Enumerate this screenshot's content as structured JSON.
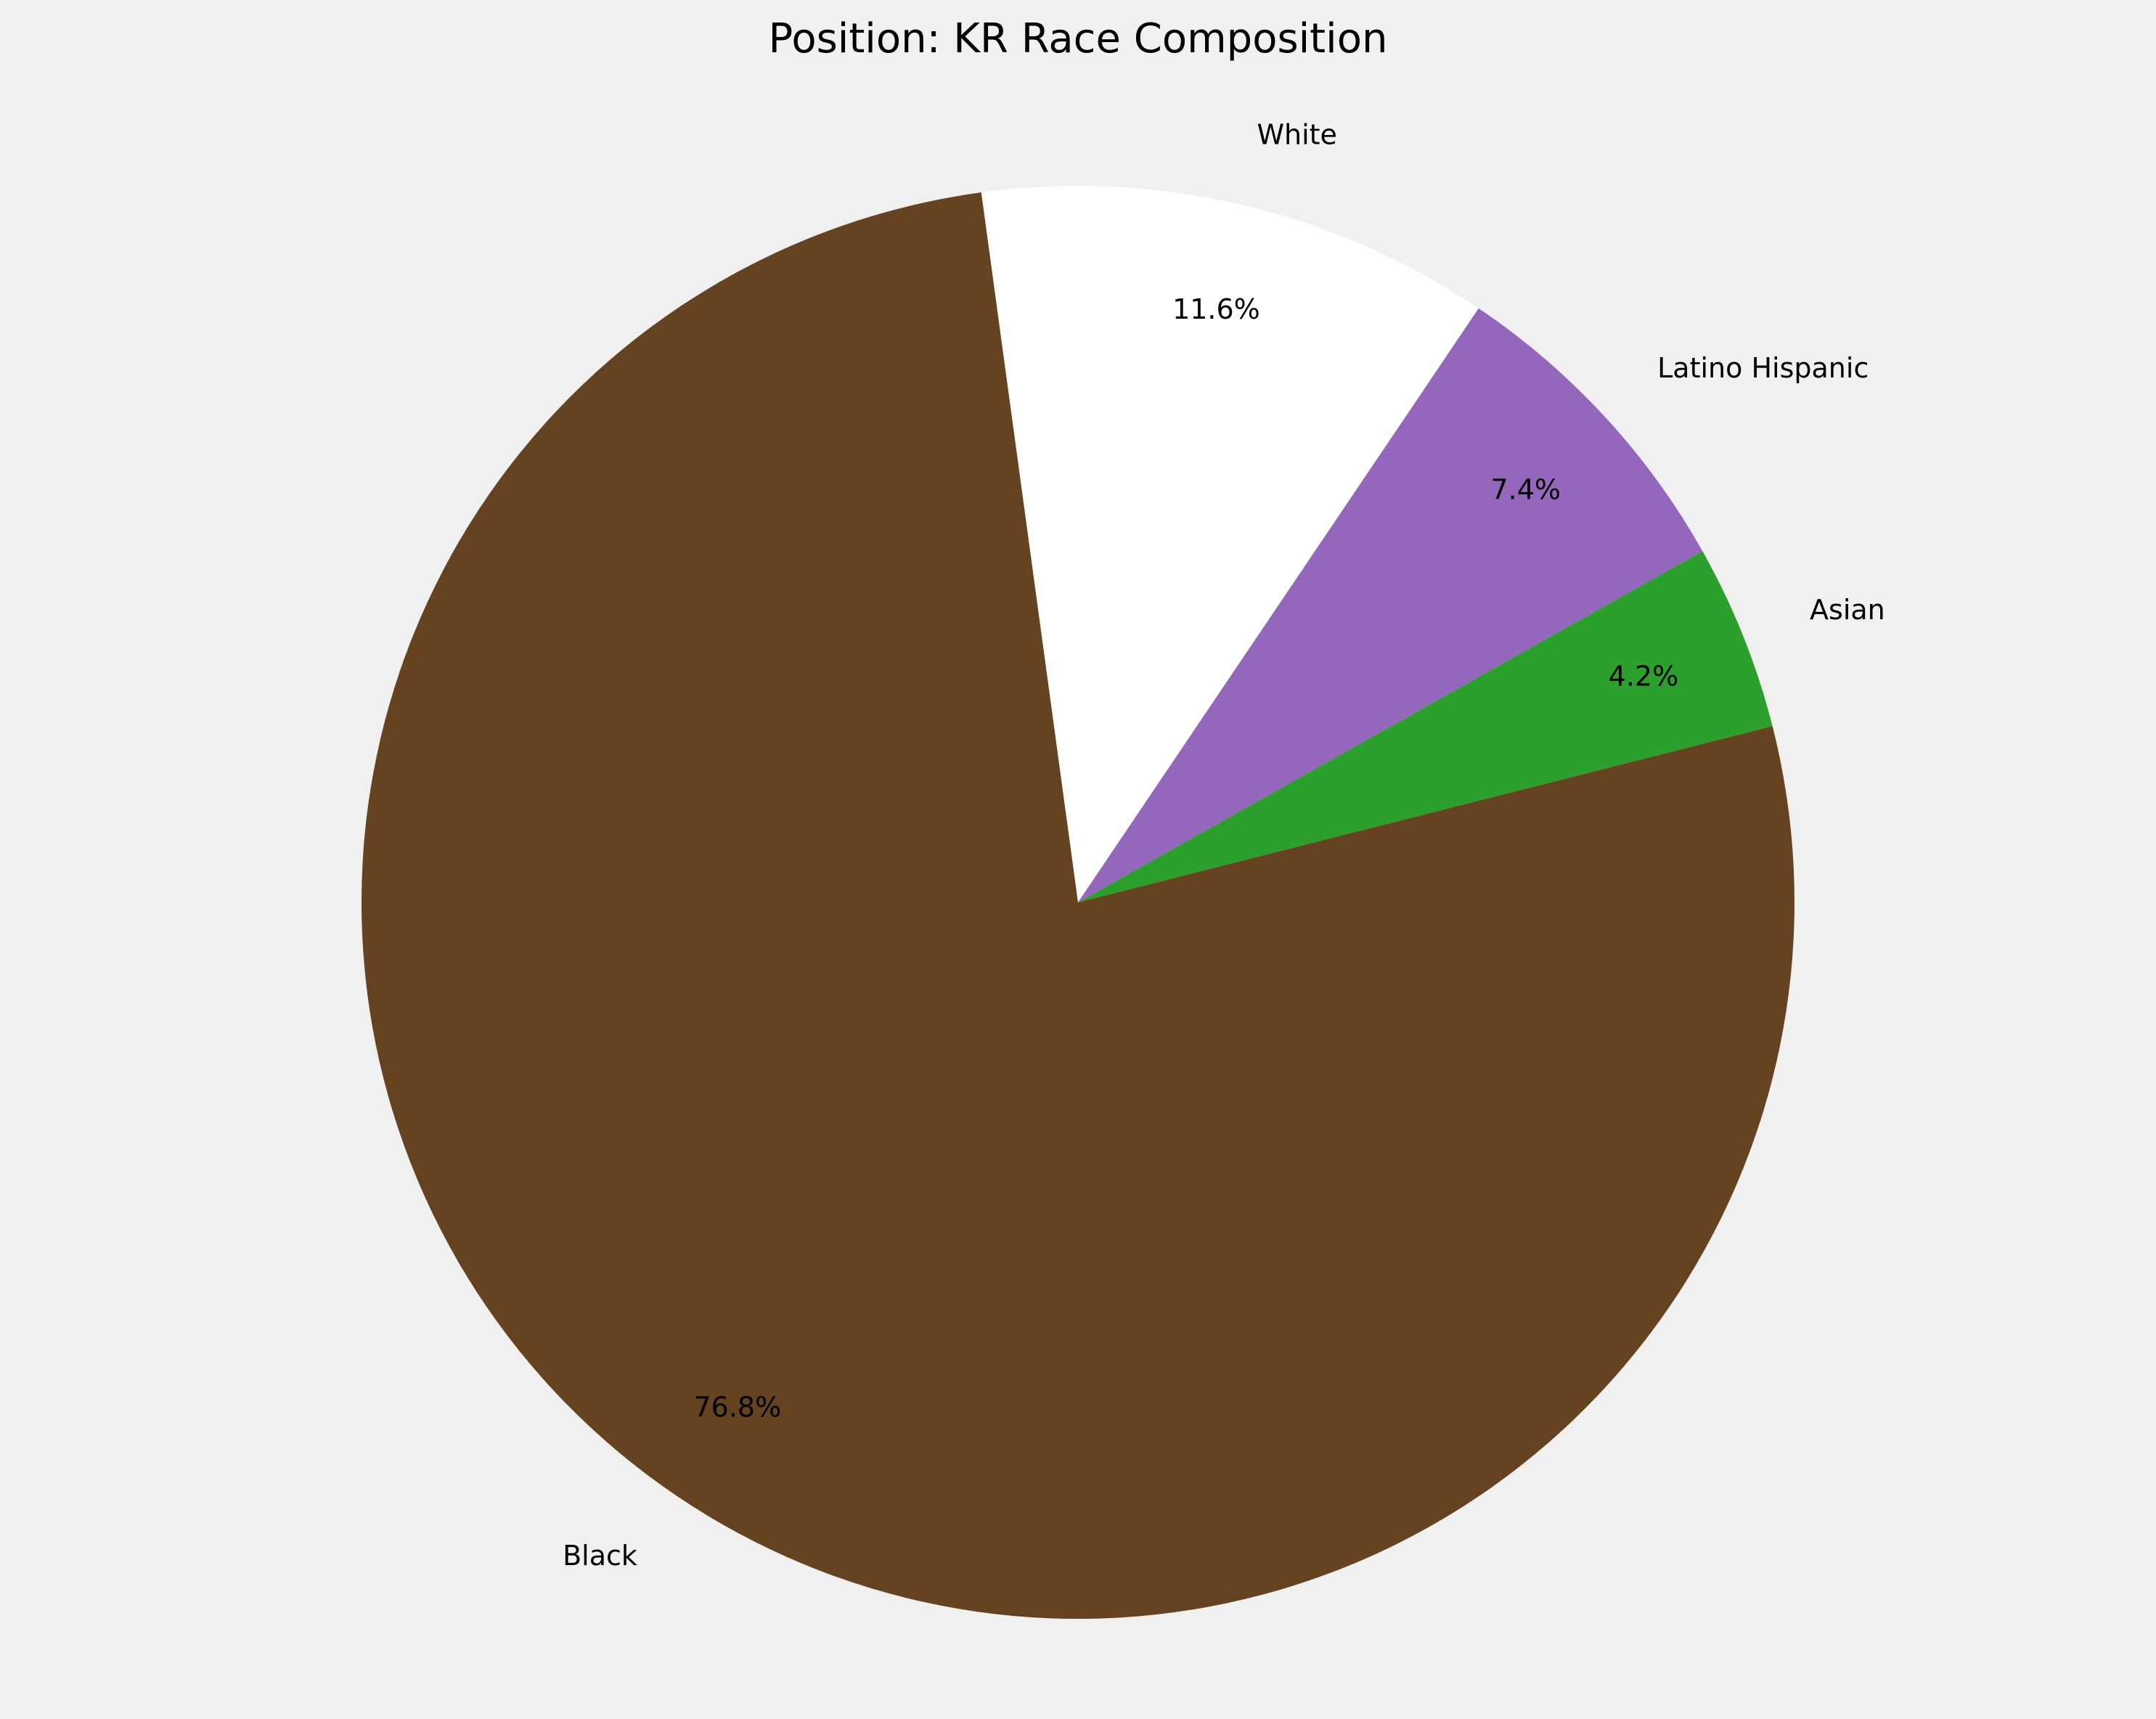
{
  "chart_data": {
    "type": "pie",
    "title": "Position: KR Race Composition",
    "slices": [
      {
        "label": "White",
        "value": 11.6,
        "display": "11.6%",
        "color": "#ffffff"
      },
      {
        "label": "Black",
        "value": 76.8,
        "display": "76.8%",
        "color": "#654321"
      },
      {
        "label": "Asian",
        "value": 4.2,
        "display": "4.2%",
        "color": "#2ca02c"
      },
      {
        "label": "Latino Hispanic",
        "value": 7.4,
        "display": "7.4%",
        "color": "#9467bd"
      }
    ],
    "background": "#f0f0f0"
  }
}
